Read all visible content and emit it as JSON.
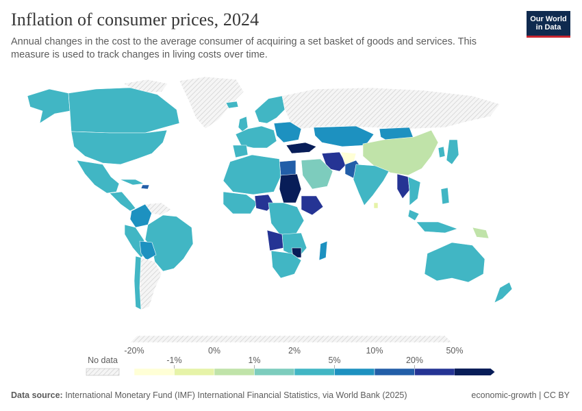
{
  "header": {
    "title": "Inflation of consumer prices, 2024",
    "subtitle": "Annual changes in the cost to the average consumer of acquiring a set basket of goods and services. This measure is used to track changes in living costs over time.",
    "logo_line1": "Our World",
    "logo_line2": "in Data"
  },
  "colors": {
    "no_data_hatch": "#cfcfcf",
    "bins": [
      "#ffffd6",
      "#e6f3a8",
      "#c0e3a9",
      "#7dccbd",
      "#41b6c4",
      "#1d91c0",
      "#225ea8",
      "#253494",
      "#081d58"
    ]
  },
  "legend": {
    "no_data_label": "No data",
    "upper_ticks": [
      {
        "label": "-20%"
      },
      {
        "label": "0%"
      },
      {
        "label": "2%"
      },
      {
        "label": "10%"
      },
      {
        "label": "50%"
      }
    ],
    "lower_ticks": [
      {
        "label": "-1%"
      },
      {
        "label": "1%"
      },
      {
        "label": "5%"
      },
      {
        "label": "20%"
      }
    ]
  },
  "footer": {
    "source_label": "Data source:",
    "source_text": "International Monetary Fund (IMF) International Financial Statistics, via World Bank (2025)",
    "right_text": "economic-growth | CC BY"
  }
}
